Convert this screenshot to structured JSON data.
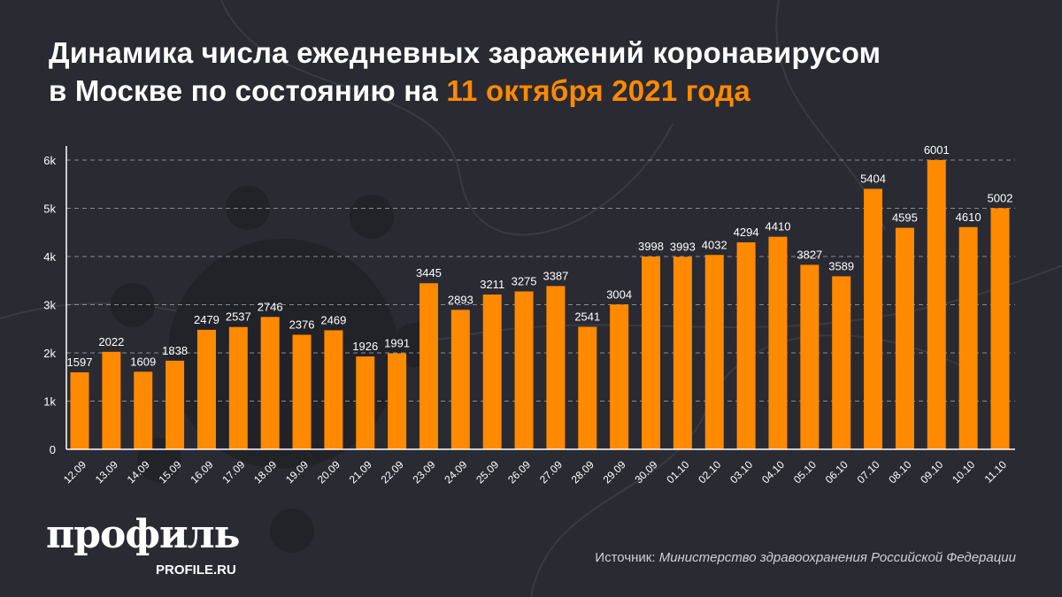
{
  "title": {
    "line1": "Динамика числа ежедневных заражений коронавирусом",
    "line2_prefix": "в Москве по состоянию на ",
    "line2_highlight": "11 октября 2021 года"
  },
  "colors": {
    "background": "#2a2a33",
    "bar": "#ff8a00",
    "highlight": "#ff8a00",
    "text": "#ffffff"
  },
  "chart_data": {
    "type": "bar",
    "title": "Динамика числа ежедневных заражений коронавирусом в Москве по состоянию на 11 октября 2021 года",
    "categories": [
      "12.09",
      "13.09",
      "14.09",
      "15.09",
      "16.09",
      "17.09",
      "18.09",
      "19.09",
      "20.09",
      "21.09",
      "22.09",
      "23.09",
      "24.09",
      "25.09",
      "26.09",
      "27.09",
      "28.09",
      "29.09",
      "30.09",
      "01.10",
      "02.10",
      "03.10",
      "04.10",
      "05.10",
      "06.10",
      "07.10",
      "08.10",
      "09.10",
      "10.10",
      "11.10"
    ],
    "values": [
      1597,
      2022,
      1609,
      1838,
      2479,
      2537,
      2746,
      2376,
      2469,
      1926,
      1991,
      3445,
      2893,
      3211,
      3275,
      3387,
      2541,
      3004,
      3998,
      3993,
      4032,
      4294,
      4410,
      3827,
      3589,
      5404,
      4595,
      6001,
      4610,
      5002
    ],
    "ylim": [
      0,
      6000
    ],
    "yticks": [
      0,
      1000,
      2000,
      3000,
      4000,
      5000,
      6000
    ],
    "ytick_labels": [
      "0",
      "1k",
      "2k",
      "3k",
      "4k",
      "5k",
      "6k"
    ],
    "xlabel": "",
    "ylabel": "",
    "grid": "horizontal dashed",
    "data_labels": true
  },
  "logo": {
    "name": "профиль",
    "site": "PROFILE.RU"
  },
  "source": {
    "label": "Источник: ",
    "text": "Министерство здравоохранения Российской Федерации"
  }
}
